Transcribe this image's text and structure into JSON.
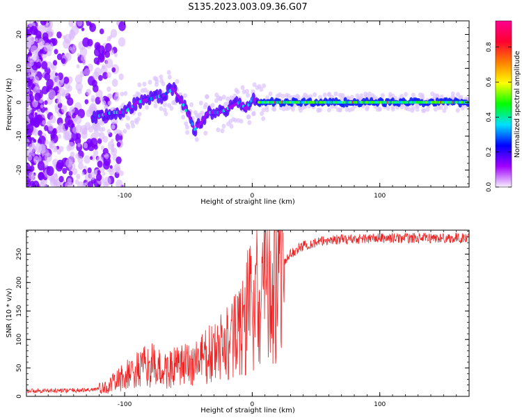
{
  "title": "S135.2023.003.09.36.G07",
  "chart_data": [
    {
      "type": "heatmap",
      "xlabel": "Height of straight line (km)",
      "ylabel": "Frequency (Hz)",
      "xlim": [
        -177,
        170
      ],
      "ylim": [
        -25,
        24
      ],
      "x_ticks": [
        -100,
        0,
        100
      ],
      "x_tick_labels": [
        "-100",
        "0",
        "100"
      ],
      "y_ticks": [
        -20,
        -10,
        0,
        10,
        20
      ],
      "y_tick_labels": [
        "-20",
        "-10",
        "0",
        "10",
        "20"
      ],
      "colorbar": {
        "label": "Normalized spectral amplitude",
        "range": [
          0,
          0.95
        ],
        "ticks": [
          0.0,
          0.2,
          0.4,
          0.6,
          0.8
        ],
        "tick_labels": [
          "0.0",
          "0.2",
          "0.4",
          "0.6",
          "0.8"
        ],
        "colors": [
          "#f7f0ff",
          "#a000ff",
          "#0000ff",
          "#00e0ff",
          "#00ff00",
          "#ffff00",
          "#ff8000",
          "#ff0030",
          "#ff0090"
        ]
      },
      "ridge": {
        "x": [
          -120,
          -110,
          -100,
          -90,
          -80,
          -70,
          -62,
          -55,
          -50,
          -45,
          -40,
          -35,
          -30,
          -25,
          -20,
          -15,
          -10,
          -5,
          0,
          5,
          10,
          20,
          40,
          80,
          120,
          170
        ],
        "y": [
          -4,
          -3,
          -3,
          0,
          1,
          2,
          4,
          0,
          -4,
          -8,
          -6,
          -3,
          -3,
          -3,
          -2,
          -1,
          0,
          -2,
          1,
          0,
          0,
          0,
          0,
          0,
          0,
          0
        ]
      }
    },
    {
      "type": "line",
      "xlabel": "Height of straight line (km)",
      "ylabel": "SNR (10 * v/v)",
      "xlim": [
        -177,
        170
      ],
      "ylim": [
        0,
        292
      ],
      "x_ticks": [
        -100,
        0,
        100
      ],
      "x_tick_labels": [
        "-100",
        "0",
        "100"
      ],
      "y_ticks": [
        0,
        50,
        100,
        150,
        200,
        250
      ],
      "y_tick_labels": [
        "0",
        "50",
        "100",
        "150",
        "200",
        "250"
      ],
      "series": [
        {
          "color": "#ee2222",
          "trend_x": [
            -177,
            -150,
            -130,
            -115,
            -100,
            -90,
            -80,
            -70,
            -60,
            -50,
            -40,
            -30,
            -20,
            -10,
            -5,
            0,
            5,
            10,
            15,
            20,
            30,
            40,
            60,
            100,
            170
          ],
          "trend_y": [
            10,
            10,
            11,
            15,
            35,
            45,
            55,
            45,
            50,
            55,
            65,
            75,
            90,
            110,
            140,
            160,
            170,
            180,
            195,
            215,
            250,
            265,
            275,
            278,
            278
          ]
        }
      ]
    }
  ]
}
